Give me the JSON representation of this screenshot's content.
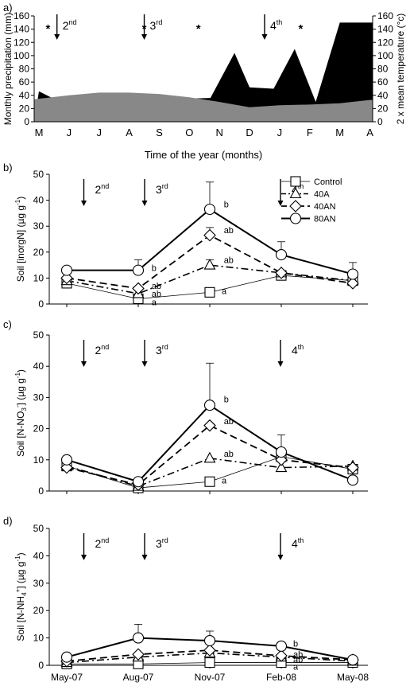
{
  "chart_data": [
    {
      "type": "area",
      "panel_label": "a)",
      "xlabel": "Time of the year (months)",
      "ylabel": "Monthly precipitation (mm)",
      "y2label": "2 x mean temperature (°c)",
      "ylim": [
        0,
        160
      ],
      "y2lim": [
        0,
        160
      ],
      "yticks": [
        0,
        20,
        40,
        60,
        80,
        100,
        120,
        140,
        160
      ],
      "categories": [
        "M",
        "J",
        "J",
        "A",
        "S",
        "O",
        "N",
        "D",
        "J",
        "F",
        "M",
        "A"
      ],
      "grid": false,
      "series": [
        {
          "name": "Monthly precipitation (mm)",
          "color": "#000000",
          "x": [
            0,
            0.7,
            5.7,
            6.5,
            7.0,
            7.8,
            8.5,
            9.2,
            10.0,
            11.0
          ],
          "values": [
            46,
            30,
            36,
            104,
            52,
            50,
            110,
            30,
            150,
            150
          ]
        },
        {
          "name": "2 x mean temperature (°c)",
          "color": "#888888",
          "x": [
            0,
            1,
            2,
            3,
            4,
            5,
            6,
            7,
            8,
            9,
            10,
            11
          ],
          "values": [
            34,
            40,
            44,
            44,
            42,
            37,
            30,
            22,
            25,
            26,
            28,
            33
          ]
        }
      ],
      "application_arrows": [
        {
          "label": "2",
          "suffix": "nd",
          "x": 0.6
        },
        {
          "label": "3",
          "suffix": "rd",
          "x": 3.5
        },
        {
          "label": "4",
          "suffix": "th",
          "x": 7.5
        }
      ],
      "asterisks": {
        "text": "*",
        "x": [
          0.3,
          3.5,
          5.3,
          8.7,
          10.9
        ]
      }
    },
    {
      "type": "line",
      "panel_label": "b)",
      "ylabel": "Soil [inorgN] (µg g",
      "ylabel_sup": "-1",
      "ylabel_end": ")",
      "ylim": [
        0,
        50
      ],
      "yticks": [
        0,
        10,
        20,
        30,
        40,
        50
      ],
      "x": [
        "May-07",
        "Aug-07",
        "Nov-07",
        "Feb-08",
        "May-08"
      ],
      "series": [
        {
          "name": "Control",
          "marker": "square",
          "dash": "solid-thin",
          "values": [
            8,
            2,
            4.5,
            11,
            9
          ],
          "errors": [
            0,
            0,
            0,
            0,
            0
          ]
        },
        {
          "name": "40A",
          "marker": "triangle",
          "dash": "dashdot",
          "values": [
            9,
            4,
            15,
            12,
            9
          ],
          "errors": [
            0,
            0,
            2,
            0,
            0
          ]
        },
        {
          "name": "40AN",
          "marker": "diamond",
          "dash": "dash",
          "values": [
            10,
            6,
            26.5,
            12,
            8
          ],
          "errors": [
            0,
            0,
            3,
            0,
            0
          ]
        },
        {
          "name": "80AN",
          "marker": "circle",
          "dash": "solid",
          "values": [
            13,
            13,
            36.5,
            19,
            11.5
          ],
          "errors": [
            0,
            4,
            10.5,
            5,
            4.5
          ]
        }
      ],
      "legend": "top-right",
      "annotations": [
        {
          "text": "b",
          "x": 2.13,
          "y": 38.5
        },
        {
          "text": "ab",
          "x": 2.13,
          "y": 28.5
        },
        {
          "text": "ab",
          "x": 2.13,
          "y": 17
        },
        {
          "text": "a",
          "x": 2.1,
          "y": 5
        },
        {
          "text": "b",
          "x": 1.12,
          "y": 14
        },
        {
          "text": "ab",
          "x": 1.12,
          "y": 7
        },
        {
          "text": "ab",
          "x": 1.12,
          "y": 4
        },
        {
          "text": "a",
          "x": 1.12,
          "y": 0.8
        }
      ],
      "application_arrows": [
        {
          "label": "2",
          "suffix": "nd",
          "x": 0.15
        },
        {
          "label": "3",
          "suffix": "rd",
          "x": 1.0
        },
        {
          "label": "4",
          "suffix": "th",
          "x": 2.9
        }
      ]
    },
    {
      "type": "line",
      "panel_label": "c)",
      "ylabel": "Soil [N-NO",
      "ylabel_sub": "3",
      "ylabel_sup1": "-",
      "ylabel_mid": "] (µg g",
      "ylabel_sup": "-1",
      "ylabel_end": ")",
      "ylim": [
        0,
        50
      ],
      "yticks": [
        0,
        10,
        20,
        30,
        40,
        50
      ],
      "x": [
        "May-07",
        "Aug-07",
        "Nov-07",
        "Feb-08",
        "May-08"
      ],
      "series": [
        {
          "name": "Control",
          "marker": "square",
          "dash": "solid-thin",
          "values": [
            8,
            1,
            3,
            11,
            7
          ],
          "errors": [
            0,
            0,
            0,
            0,
            0
          ]
        },
        {
          "name": "40A",
          "marker": "triangle",
          "dash": "dashdot",
          "values": [
            8,
            1.5,
            10.5,
            7.5,
            8
          ],
          "errors": [
            0,
            0,
            0,
            0,
            0
          ]
        },
        {
          "name": "40AN",
          "marker": "diamond",
          "dash": "dash",
          "values": [
            7.5,
            2,
            21,
            10,
            7.5
          ],
          "errors": [
            0,
            0,
            0,
            0,
            0
          ]
        },
        {
          "name": "80AN",
          "marker": "circle",
          "dash": "solid",
          "values": [
            10,
            3,
            27.5,
            12.5,
            3.5
          ],
          "errors": [
            0,
            0,
            13.5,
            5.5,
            0
          ]
        }
      ],
      "annotations": [
        {
          "text": "b",
          "x": 2.13,
          "y": 29.5
        },
        {
          "text": "ab",
          "x": 2.13,
          "y": 22.5
        },
        {
          "text": "ab",
          "x": 2.13,
          "y": 12
        },
        {
          "text": "a",
          "x": 2.1,
          "y": 3.5
        }
      ],
      "application_arrows": [
        {
          "label": "2",
          "suffix": "nd",
          "x": 0.15
        },
        {
          "label": "3",
          "suffix": "rd",
          "x": 1.0
        },
        {
          "label": "4",
          "suffix": "th",
          "x": 2.9
        }
      ]
    },
    {
      "type": "line",
      "panel_label": "d)",
      "ylabel": "Soil [N-NH",
      "ylabel_sub": "4",
      "ylabel_sup1": "+",
      "ylabel_mid": "] (µg g",
      "ylabel_sup": "-1",
      "ylabel_end": ")",
      "ylim": [
        0,
        50
      ],
      "yticks": [
        0,
        10,
        20,
        30,
        40,
        50
      ],
      "x": [
        "May-07",
        "Aug-07",
        "Nov-07",
        "Feb-08",
        "May-08"
      ],
      "series": [
        {
          "name": "Control",
          "marker": "square",
          "dash": "solid-thin",
          "values": [
            0.5,
            0.5,
            1,
            1,
            1
          ],
          "errors": [
            0,
            0,
            0,
            0,
            0
          ]
        },
        {
          "name": "40A",
          "marker": "triangle",
          "dash": "dashdot",
          "values": [
            1,
            3,
            4.5,
            3,
            1.5
          ],
          "errors": [
            0,
            0,
            0,
            0,
            0
          ]
        },
        {
          "name": "40AN",
          "marker": "diamond",
          "dash": "dash",
          "values": [
            1.5,
            4,
            5.5,
            3.5,
            2
          ],
          "errors": [
            0,
            0,
            0,
            0,
            0
          ]
        },
        {
          "name": "80AN",
          "marker": "circle",
          "dash": "solid",
          "values": [
            3,
            10,
            9,
            7,
            2
          ],
          "errors": [
            0,
            5,
            3.5,
            0,
            0
          ]
        }
      ],
      "annotations": [
        {
          "text": "b",
          "x": 3.1,
          "y": 8
        },
        {
          "text": "ab",
          "x": 3.1,
          "y": 4
        },
        {
          "text": "ab",
          "x": 3.1,
          "y": 2.2
        },
        {
          "text": "a",
          "x": 3.1,
          "y": -0.5
        }
      ],
      "application_arrows": [
        {
          "label": "2",
          "suffix": "nd",
          "x": 0.15
        },
        {
          "label": "3",
          "suffix": "rd",
          "x": 1.0
        },
        {
          "label": "4",
          "suffix": "th",
          "x": 2.9
        }
      ]
    }
  ]
}
